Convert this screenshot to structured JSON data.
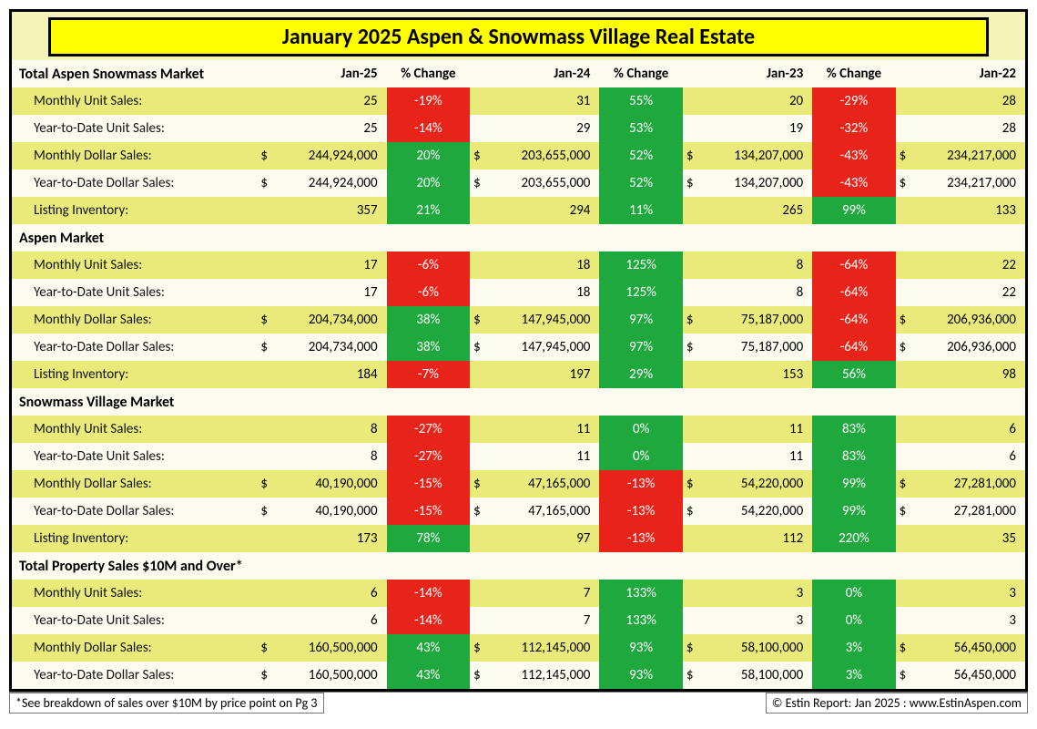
{
  "title": "January 2025 Aspen & Snowmass Village Real Estate",
  "headers": [
    "Jan-25",
    "% Change",
    "Jan-24",
    "% Change",
    "Jan-23",
    "% Change",
    "Jan-22"
  ],
  "colors": {
    "pos": "#1fa83d",
    "neg": "#e8241a",
    "title_bg": "#ffff00",
    "row_even": "#eaea7a",
    "row_odd": "#fbfbf0"
  },
  "footnote_left": "*See breakdown of sales over $10M by price point on Pg 3",
  "footnote_right": "© Estin Report: Jan 2025 : www.EstinAspen.com",
  "sections": [
    {
      "name": "Total Aspen Snowmass Market",
      "rows": [
        {
          "label": "Monthly Unit Sales:",
          "v1": "25",
          "p1": "-19%",
          "v2": "31",
          "p2": "55%",
          "v3": "20",
          "p3": "-29%",
          "v4": "28"
        },
        {
          "label": "Year-to-Date Unit Sales:",
          "v1": "25",
          "p1": "-14%",
          "v2": "29",
          "p2": "53%",
          "v3": "19",
          "p3": "-32%",
          "v4": "28"
        },
        {
          "label": "Monthly Dollar Sales:",
          "d": true,
          "v1": "244,924,000",
          "p1": "20%",
          "v2": "203,655,000",
          "p2": "52%",
          "v3": "134,207,000",
          "p3": "-43%",
          "v4": "234,217,000"
        },
        {
          "label": "Year-to-Date Dollar Sales:",
          "d": true,
          "v1": "244,924,000",
          "p1": "20%",
          "v2": "203,655,000",
          "p2": "52%",
          "v3": "134,207,000",
          "p3": "-43%",
          "v4": "234,217,000"
        },
        {
          "label": "Listing Inventory:",
          "v1": "357",
          "p1": "21%",
          "v2": "294",
          "p2": "11%",
          "v3": "265",
          "p3": "99%",
          "v4": "133"
        }
      ]
    },
    {
      "name": "Aspen Market",
      "rows": [
        {
          "label": "Monthly Unit Sales:",
          "v1": "17",
          "p1": "-6%",
          "v2": "18",
          "p2": "125%",
          "v3": "8",
          "p3": "-64%",
          "v4": "22"
        },
        {
          "label": "Year-to-Date Unit Sales:",
          "v1": "17",
          "p1": "-6%",
          "v2": "18",
          "p2": "125%",
          "v3": "8",
          "p3": "-64%",
          "v4": "22"
        },
        {
          "label": "Monthly Dollar Sales:",
          "d": true,
          "v1": "204,734,000",
          "p1": "38%",
          "v2": "147,945,000",
          "p2": "97%",
          "v3": "75,187,000",
          "p3": "-64%",
          "v4": "206,936,000"
        },
        {
          "label": "Year-to-Date Dollar Sales:",
          "d": true,
          "v1": "204,734,000",
          "p1": "38%",
          "v2": "147,945,000",
          "p2": "97%",
          "v3": "75,187,000",
          "p3": "-64%",
          "v4": "206,936,000"
        },
        {
          "label": "Listing Inventory:",
          "v1": "184",
          "p1": "-7%",
          "v2": "197",
          "p2": "29%",
          "v3": "153",
          "p3": "56%",
          "v4": "98"
        }
      ]
    },
    {
      "name": "Snowmass Village Market",
      "rows": [
        {
          "label": "Monthly Unit Sales:",
          "v1": "8",
          "p1": "-27%",
          "v2": "11",
          "p2": "0%",
          "v3": "11",
          "p3": "83%",
          "v4": "6"
        },
        {
          "label": "Year-to-Date Unit Sales:",
          "v1": "8",
          "p1": "-27%",
          "v2": "11",
          "p2": "0%",
          "v3": "11",
          "p3": "83%",
          "v4": "6"
        },
        {
          "label": "Monthly Dollar Sales:",
          "d": true,
          "v1": "40,190,000",
          "p1": "-15%",
          "v2": "47,165,000",
          "p2": "-13%",
          "v3": "54,220,000",
          "p3": "99%",
          "v4": "27,281,000"
        },
        {
          "label": "Year-to-Date Dollar Sales:",
          "d": true,
          "v1": "40,190,000",
          "p1": "-15%",
          "v2": "47,165,000",
          "p2": "-13%",
          "v3": "54,220,000",
          "p3": "99%",
          "v4": "27,281,000"
        },
        {
          "label": "Listing Inventory:",
          "v1": "173",
          "p1": "78%",
          "v2": "97",
          "p2": "-13%",
          "v3": "112",
          "p3": "220%",
          "v4": "35"
        }
      ]
    },
    {
      "name": "Total Property Sales $10M and Over*",
      "rows": [
        {
          "label": "Monthly Unit Sales:",
          "v1": "6",
          "p1": "-14%",
          "v2": "7",
          "p2": "133%",
          "v3": "3",
          "p3": "0%",
          "v4": "3"
        },
        {
          "label": "Year-to-Date Unit Sales:",
          "v1": "6",
          "p1": "-14%",
          "v2": "7",
          "p2": "133%",
          "v3": "3",
          "p3": "0%",
          "v4": "3"
        },
        {
          "label": "Monthly Dollar Sales:",
          "d": true,
          "v1": "160,500,000",
          "p1": "43%",
          "v2": "112,145,000",
          "p2": "93%",
          "v3": "58,100,000",
          "p3": "3%",
          "v4": "56,450,000"
        },
        {
          "label": "Year-to-Date Dollar Sales:",
          "d": true,
          "v1": "160,500,000",
          "p1": "43%",
          "v2": "112,145,000",
          "p2": "93%",
          "v3": "58,100,000",
          "p3": "3%",
          "v4": "56,450,000"
        }
      ]
    }
  ]
}
